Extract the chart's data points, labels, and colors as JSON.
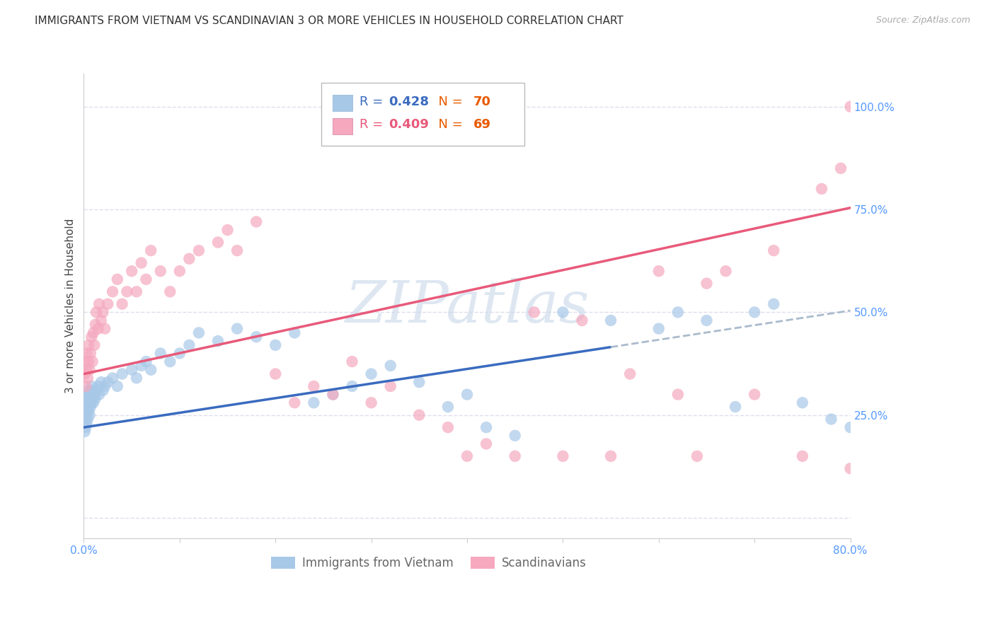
{
  "title": "IMMIGRANTS FROM VIETNAM VS SCANDINAVIAN 3 OR MORE VEHICLES IN HOUSEHOLD CORRELATION CHART",
  "source": "Source: ZipAtlas.com",
  "ylabel": "3 or more Vehicles in Household",
  "xlim": [
    0.0,
    0.8
  ],
  "ylim": [
    -0.05,
    1.08
  ],
  "xtick_positions": [
    0.0,
    0.1,
    0.2,
    0.3,
    0.4,
    0.5,
    0.6,
    0.7,
    0.8
  ],
  "ytick_positions": [
    0.0,
    0.25,
    0.5,
    0.75,
    1.0
  ],
  "ytick_labels": [
    "",
    "25.0%",
    "50.0%",
    "75.0%",
    "100.0%"
  ],
  "xtick_labels": [
    "0.0%",
    "",
    "",
    "",
    "",
    "",
    "",
    "",
    "80.0%"
  ],
  "blue_label": "Immigrants from Vietnam",
  "pink_label": "Scandinavians",
  "blue_color": "#a8c8e8",
  "pink_color": "#f5a8be",
  "blue_line_color": "#3a6bbf",
  "pink_line_color": "#e85a7a",
  "blue_legend_R_color": "#3a6bbf",
  "blue_legend_N_color": "#e85a00",
  "pink_legend_R_color": "#e85a7a",
  "pink_legend_N_color": "#e85a00",
  "blue_R_text": "0.428",
  "blue_N_text": "70",
  "pink_R_text": "0.409",
  "pink_N_text": "69",
  "dashed_line_color": "#aabbcc",
  "watermark_text": "ZIPatlas",
  "watermark_color": "#c8d8e8",
  "background_color": "#ffffff",
  "grid_color": "#ddddee",
  "axis_tick_color": "#5599ff",
  "title_fontsize": 11,
  "axis_tick_fontsize": 11,
  "ylabel_fontsize": 11,
  "blue_line_intercept": 0.22,
  "blue_line_slope": 0.355,
  "pink_line_intercept": 0.35,
  "pink_line_slope": 0.505,
  "blue_scatter_x": [
    0.001,
    0.001,
    0.002,
    0.002,
    0.002,
    0.003,
    0.003,
    0.003,
    0.004,
    0.004,
    0.004,
    0.005,
    0.005,
    0.006,
    0.006,
    0.007,
    0.007,
    0.008,
    0.008,
    0.009,
    0.01,
    0.01,
    0.011,
    0.012,
    0.013,
    0.015,
    0.016,
    0.018,
    0.02,
    0.022,
    0.025,
    0.03,
    0.035,
    0.04,
    0.05,
    0.055,
    0.06,
    0.065,
    0.07,
    0.08,
    0.09,
    0.1,
    0.11,
    0.12,
    0.14,
    0.16,
    0.18,
    0.2,
    0.22,
    0.24,
    0.26,
    0.28,
    0.3,
    0.32,
    0.35,
    0.38,
    0.4,
    0.42,
    0.45,
    0.5,
    0.55,
    0.6,
    0.62,
    0.65,
    0.68,
    0.7,
    0.72,
    0.75,
    0.78,
    0.8
  ],
  "blue_scatter_y": [
    0.21,
    0.24,
    0.22,
    0.25,
    0.28,
    0.23,
    0.26,
    0.3,
    0.24,
    0.27,
    0.29,
    0.26,
    0.31,
    0.25,
    0.28,
    0.27,
    0.3,
    0.28,
    0.32,
    0.29,
    0.28,
    0.31,
    0.3,
    0.29,
    0.31,
    0.32,
    0.3,
    0.33,
    0.31,
    0.32,
    0.33,
    0.34,
    0.32,
    0.35,
    0.36,
    0.34,
    0.37,
    0.38,
    0.36,
    0.4,
    0.38,
    0.4,
    0.42,
    0.45,
    0.43,
    0.46,
    0.44,
    0.42,
    0.45,
    0.28,
    0.3,
    0.32,
    0.35,
    0.37,
    0.33,
    0.27,
    0.3,
    0.22,
    0.2,
    0.5,
    0.48,
    0.46,
    0.5,
    0.48,
    0.27,
    0.5,
    0.52,
    0.28,
    0.24,
    0.22
  ],
  "pink_scatter_x": [
    0.001,
    0.002,
    0.002,
    0.003,
    0.003,
    0.004,
    0.005,
    0.005,
    0.006,
    0.007,
    0.008,
    0.009,
    0.01,
    0.011,
    0.012,
    0.013,
    0.015,
    0.016,
    0.018,
    0.02,
    0.022,
    0.025,
    0.03,
    0.035,
    0.04,
    0.045,
    0.05,
    0.055,
    0.06,
    0.065,
    0.07,
    0.08,
    0.09,
    0.1,
    0.11,
    0.12,
    0.14,
    0.15,
    0.16,
    0.18,
    0.2,
    0.22,
    0.24,
    0.26,
    0.28,
    0.3,
    0.32,
    0.35,
    0.38,
    0.4,
    0.42,
    0.45,
    0.47,
    0.5,
    0.52,
    0.55,
    0.57,
    0.6,
    0.62,
    0.64,
    0.65,
    0.67,
    0.7,
    0.72,
    0.75,
    0.77,
    0.79,
    0.8,
    0.8
  ],
  "pink_scatter_y": [
    0.35,
    0.32,
    0.38,
    0.36,
    0.4,
    0.34,
    0.38,
    0.42,
    0.36,
    0.4,
    0.44,
    0.38,
    0.45,
    0.42,
    0.47,
    0.5,
    0.46,
    0.52,
    0.48,
    0.5,
    0.46,
    0.52,
    0.55,
    0.58,
    0.52,
    0.55,
    0.6,
    0.55,
    0.62,
    0.58,
    0.65,
    0.6,
    0.55,
    0.6,
    0.63,
    0.65,
    0.67,
    0.7,
    0.65,
    0.72,
    0.35,
    0.28,
    0.32,
    0.3,
    0.38,
    0.28,
    0.32,
    0.25,
    0.22,
    0.15,
    0.18,
    0.15,
    0.5,
    0.15,
    0.48,
    0.15,
    0.35,
    0.6,
    0.3,
    0.15,
    0.57,
    0.6,
    0.3,
    0.65,
    0.15,
    0.8,
    0.85,
    1.0,
    0.12
  ]
}
